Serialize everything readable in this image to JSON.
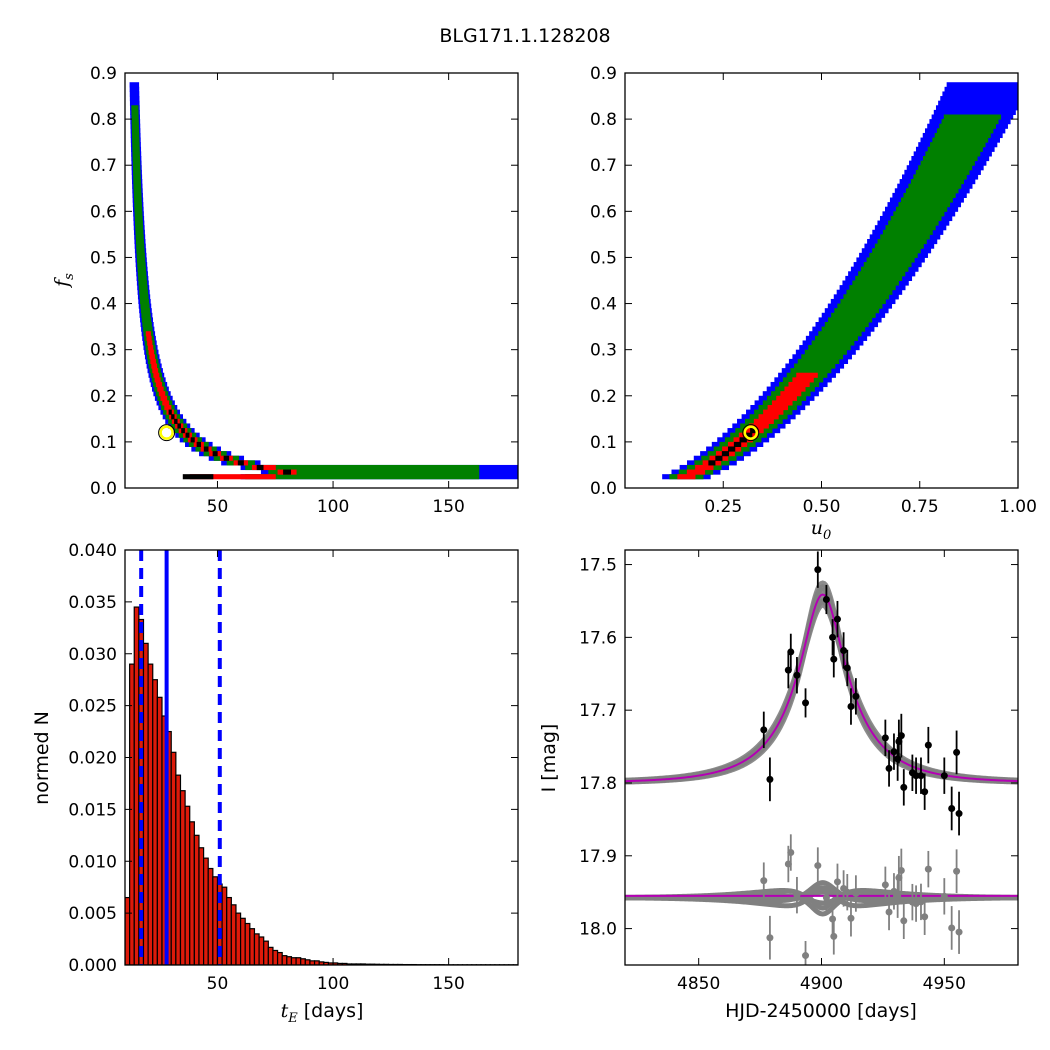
{
  "figure": {
    "title": "BLG171.1.128208"
  },
  "colors": {
    "sigma3": "#0000ff",
    "sigma2": "#008000",
    "sigma1": "#ff0000",
    "core": "#000000",
    "best_fit_marker": "#ffff00",
    "hist_fill": "#dd1a0a",
    "model": "#b400b4",
    "model_band": "#808080",
    "residuals": "#808080"
  },
  "chart_data": [
    {
      "type": "heatmap",
      "panel": "fs-vs-tE",
      "xlabel": "",
      "ylabel_symbol": "f",
      "ylabel_sub": "s",
      "xlim": [
        10,
        180
      ],
      "ylim": [
        0,
        0.9
      ],
      "xticks": [
        "50",
        "100",
        "150"
      ],
      "xtick_values": [
        50,
        100,
        150
      ],
      "yticks": [
        "0.0",
        "0.1",
        "0.2",
        "0.3",
        "0.4",
        "0.5",
        "0.6",
        "0.7",
        "0.8",
        "0.9"
      ],
      "ytick_values": [
        0,
        0.1,
        0.2,
        0.3,
        0.4,
        0.5,
        0.6,
        0.7,
        0.8,
        0.9
      ],
      "best_fit": {
        "x": 28,
        "y": 0.12
      },
      "contour_levels": [
        "sigma3",
        "sigma2",
        "sigma1",
        "core"
      ]
    },
    {
      "type": "heatmap",
      "panel": "fs-vs-u0",
      "xlabel_symbol": "u",
      "xlabel_sub": "0",
      "xlim": [
        0,
        1.0
      ],
      "ylim": [
        0,
        0.9
      ],
      "xticks": [
        "0.25",
        "0.50",
        "0.75",
        "1.00"
      ],
      "xtick_values": [
        0.25,
        0.5,
        0.75,
        1.0
      ],
      "yticks": [
        "0.0",
        "0.1",
        "0.2",
        "0.3",
        "0.4",
        "0.5",
        "0.6",
        "0.7",
        "0.8",
        "0.9"
      ],
      "ytick_values": [
        0,
        0.1,
        0.2,
        0.3,
        0.4,
        0.5,
        0.6,
        0.7,
        0.8,
        0.9
      ],
      "best_fit": {
        "x": 0.32,
        "y": 0.12
      },
      "contour_levels": [
        "sigma3",
        "sigma2",
        "sigma1",
        "core"
      ]
    },
    {
      "type": "bar",
      "panel": "tE-histogram",
      "xlabel_symbol": "t",
      "xlabel_sub": "E",
      "xlabel_suffix": " [days]",
      "ylabel": "normed N",
      "xlim": [
        10,
        180
      ],
      "ylim": [
        0,
        0.04
      ],
      "xticks": [
        "50",
        "100",
        "150"
      ],
      "xtick_values": [
        50,
        100,
        150
      ],
      "yticks": [
        "0.000",
        "0.005",
        "0.010",
        "0.015",
        "0.020",
        "0.025",
        "0.030",
        "0.035",
        "0.040"
      ],
      "ytick_values": [
        0,
        0.005,
        0.01,
        0.015,
        0.02,
        0.025,
        0.03,
        0.035,
        0.04
      ],
      "bin_start": 10,
      "bin_width": 2,
      "values": [
        0.0065,
        0.029,
        0.0345,
        0.0333,
        0.031,
        0.029,
        0.0275,
        0.0258,
        0.024,
        0.0225,
        0.0205,
        0.0183,
        0.0168,
        0.0153,
        0.0138,
        0.0125,
        0.0113,
        0.0103,
        0.0093,
        0.0085,
        0.0078,
        0.0075,
        0.0065,
        0.0058,
        0.005,
        0.0045,
        0.004,
        0.0035,
        0.003,
        0.0027,
        0.0023,
        0.0017,
        0.0014,
        0.0012,
        0.0009,
        0.0008,
        0.0007,
        0.0007,
        0.0006,
        0.0005,
        0.0004,
        0.0004,
        0.0003,
        0.00025,
        0.0002,
        0.0002,
        0.00015,
        0.00015,
        0.0001,
        0.0001,
        0.0001,
        0.0001,
        8e-05,
        8e-05,
        7e-05,
        6e-05,
        6e-05,
        5e-05,
        5e-05,
        5e-05,
        4e-05,
        4e-05,
        4e-05,
        3e-05,
        3e-05,
        3e-05,
        3e-05,
        3e-05,
        3e-05,
        2e-05,
        2e-05,
        2e-05,
        2e-05,
        2e-05,
        2e-05,
        2e-05,
        2e-05,
        2e-05,
        2e-05,
        2e-05,
        2e-05,
        2e-05,
        2e-05,
        2e-05,
        2e-05
      ],
      "median_line": 28,
      "interval_lines": [
        17,
        51
      ]
    },
    {
      "type": "scatter",
      "panel": "lightcurve",
      "xlabel": "HJD-2450000 [days]",
      "ylabel": "I [mag]",
      "xlim": [
        4820,
        4980
      ],
      "ylim": [
        18.05,
        17.48
      ],
      "y_inverted": true,
      "xticks": [
        "4850",
        "4900",
        "4950"
      ],
      "xtick_values": [
        4850,
        4900,
        4950
      ],
      "yticks": [
        "17.5",
        "17.6",
        "17.7",
        "17.8",
        "17.9",
        "18.0"
      ],
      "ytick_values": [
        17.5,
        17.6,
        17.7,
        17.8,
        17.9,
        18.0
      ],
      "model": {
        "t0": 4900.5,
        "tE": 28,
        "u0": 0.32,
        "fs": 0.12,
        "baseline": 17.8
      },
      "residual_offset": 17.955,
      "points": [
        {
          "t": 4876.5,
          "mag": 17.727,
          "err": 0.025
        },
        {
          "t": 4879,
          "mag": 17.795,
          "err": 0.03
        },
        {
          "t": 4886.5,
          "mag": 17.645,
          "err": 0.025
        },
        {
          "t": 4887.5,
          "mag": 17.62,
          "err": 0.025
        },
        {
          "t": 4890,
          "mag": 17.652,
          "err": 0.025
        },
        {
          "t": 4893.5,
          "mag": 17.69,
          "err": 0.02
        },
        {
          "t": 4898.5,
          "mag": 17.507,
          "err": 0.025
        },
        {
          "t": 4902,
          "mag": 17.548,
          "err": 0.02
        },
        {
          "t": 4904.5,
          "mag": 17.6,
          "err": 0.025
        },
        {
          "t": 4905,
          "mag": 17.63,
          "err": 0.025
        },
        {
          "t": 4906.5,
          "mag": 17.575,
          "err": 0.025
        },
        {
          "t": 4909,
          "mag": 17.618,
          "err": 0.025
        },
        {
          "t": 4910.5,
          "mag": 17.642,
          "err": 0.025
        },
        {
          "t": 4912,
          "mag": 17.695,
          "err": 0.025
        },
        {
          "t": 4914,
          "mag": 17.681,
          "err": 0.025
        },
        {
          "t": 4926,
          "mag": 17.738,
          "err": 0.025
        },
        {
          "t": 4927.5,
          "mag": 17.78,
          "err": 0.025
        },
        {
          "t": 4929.5,
          "mag": 17.757,
          "err": 0.025
        },
        {
          "t": 4931,
          "mag": 17.767,
          "err": 0.03
        },
        {
          "t": 4931.5,
          "mag": 17.743,
          "err": 0.03
        },
        {
          "t": 4932.5,
          "mag": 17.735,
          "err": 0.03
        },
        {
          "t": 4933.5,
          "mag": 17.806,
          "err": 0.025
        },
        {
          "t": 4937,
          "mag": 17.786,
          "err": 0.025
        },
        {
          "t": 4938.5,
          "mag": 17.79,
          "err": 0.025
        },
        {
          "t": 4940.5,
          "mag": 17.79,
          "err": 0.025
        },
        {
          "t": 4942,
          "mag": 17.812,
          "err": 0.025
        },
        {
          "t": 4943.5,
          "mag": 17.748,
          "err": 0.025
        },
        {
          "t": 4950,
          "mag": 17.79,
          "err": 0.025
        },
        {
          "t": 4953,
          "mag": 17.835,
          "err": 0.03
        },
        {
          "t": 4955,
          "mag": 17.758,
          "err": 0.03
        },
        {
          "t": 4956,
          "mag": 17.842,
          "err": 0.03
        }
      ]
    }
  ]
}
